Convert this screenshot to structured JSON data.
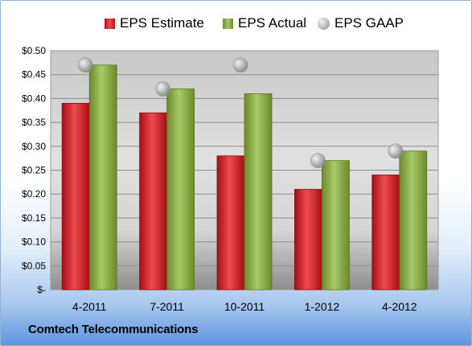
{
  "chart_data": {
    "type": "bar",
    "categories": [
      "4-2011",
      "7-2011",
      "10-2011",
      "1-2012",
      "4-2012"
    ],
    "series": [
      {
        "name": "EPS Estimate",
        "kind": "bar",
        "color": "#d4272c",
        "values": [
          0.39,
          0.37,
          0.28,
          0.21,
          0.24
        ]
      },
      {
        "name": "EPS Actual",
        "kind": "bar",
        "color": "#8fb04a",
        "values": [
          0.47,
          0.42,
          0.41,
          0.27,
          0.29
        ]
      },
      {
        "name": "EPS GAAP",
        "kind": "marker",
        "color": "#a0a0a0",
        "values": [
          0.47,
          0.42,
          0.47,
          0.27,
          0.29
        ]
      }
    ],
    "ylim": [
      0,
      0.5
    ],
    "yticks": [
      0,
      0.05,
      0.1,
      0.15,
      0.2,
      0.25,
      0.3,
      0.35,
      0.4,
      0.45,
      0.5
    ],
    "ytick_labels": [
      "$-",
      "$0.05",
      "$0.10",
      "$0.15",
      "$0.20",
      "$0.25",
      "$0.30",
      "$0.35",
      "$0.40",
      "$0.45",
      "$0.50"
    ],
    "grid": true,
    "legend_position": "top",
    "xlabel": "",
    "ylabel": "",
    "title": ""
  },
  "company": "Comtech Telecommunications"
}
